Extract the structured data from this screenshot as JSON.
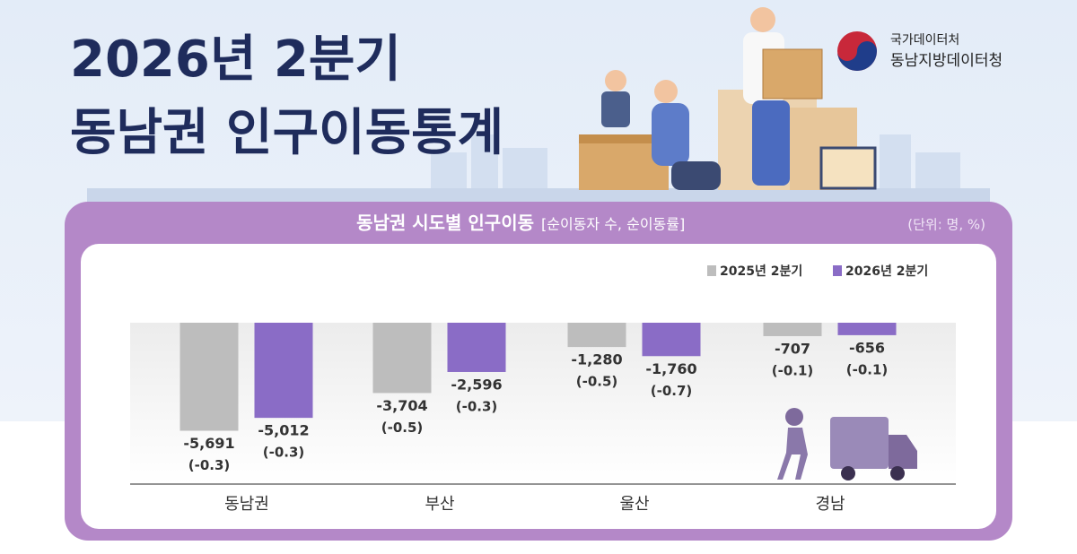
{
  "header": {
    "title_line1": "2026년 2분기",
    "title_line2": "동남권 인구이동통계",
    "org_line1": "국가데이터처",
    "org_line2": "동남지방데이터청"
  },
  "chart_data": {
    "type": "bar",
    "title": "동남권 시도별 인구이동",
    "subtitle": "[순이동자 수, 순이동률]",
    "unit": "(단위: 명, %)",
    "categories": [
      "동남권",
      "부산",
      "울산",
      "경남"
    ],
    "ylim": [
      -8500,
      0
    ],
    "series": [
      {
        "name": "2025년 2분기",
        "color": "#bdbdbd",
        "values": [
          -5691,
          -3704,
          -1280,
          -707
        ],
        "value_labels": [
          "-5,691",
          "-3,704",
          "-1,280",
          "-707"
        ],
        "rates": [
          -0.3,
          -0.5,
          -0.5,
          -0.1
        ],
        "rate_labels": [
          "(-0.3)",
          "(-0.5)",
          "(-0.5)",
          "(-0.1)"
        ]
      },
      {
        "name": "2026년 2분기",
        "color": "#8a6cc6",
        "values": [
          -5012,
          -2596,
          -1760,
          -656
        ],
        "value_labels": [
          "-5,012",
          "-2,596",
          "-1,760",
          "-656"
        ],
        "rates": [
          -0.3,
          -0.3,
          -0.7,
          -0.1
        ],
        "rate_labels": [
          "(-0.3)",
          "(-0.3)",
          "(-0.7)",
          "(-0.1)"
        ]
      }
    ]
  }
}
